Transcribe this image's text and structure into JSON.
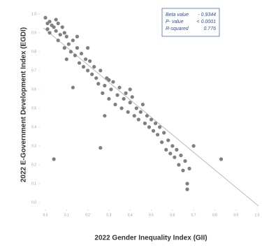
{
  "chart_data": {
    "type": "scatter",
    "x_label": "2022 Gender Inequality Index (GII)",
    "y_label": "2022 E-Government Development Index (EGDI)",
    "annotations": [
      [
        "Beta value",
        "- 0.9344"
      ],
      [
        "P- value",
        "< 0.0001"
      ],
      [
        "R-squared",
        "0.776"
      ]
    ],
    "color": "#7f7f7f",
    "xlim": [
      0,
      1
    ],
    "ylim": [
      0,
      1
    ],
    "xticks": [
      {
        "value": 0,
        "label": "0.0"
      },
      {
        "value": 0.1,
        "label": "0.1"
      },
      {
        "value": 0.2,
        "label": "0.2"
      },
      {
        "value": 0.3,
        "label": "0.3"
      },
      {
        "value": 0.4,
        "label": "0.4"
      },
      {
        "value": 0.5,
        "label": "0.5"
      },
      {
        "value": 0.6,
        "label": "0.6"
      },
      {
        "value": 0.7,
        "label": "0.7"
      },
      {
        "value": 0.8,
        "label": "0.8"
      },
      {
        "value": 0.9,
        "label": "0.9"
      },
      {
        "value": 1,
        "label": "1.0"
      }
    ],
    "yticks": [
      {
        "value": 0,
        "label": "0.0"
      },
      {
        "value": 0.1,
        "label": "0.1"
      },
      {
        "value": 0.2,
        "label": "0.2"
      },
      {
        "value": 0.3,
        "label": "0.3"
      },
      {
        "value": 0.4,
        "label": "0.4"
      },
      {
        "value": 0.5,
        "label": "0.5"
      },
      {
        "value": 0.6,
        "label": "0.6"
      },
      {
        "value": 0.7,
        "label": "0.7"
      },
      {
        "value": 0.8,
        "label": "0.8"
      },
      {
        "value": 0.9,
        "label": "0.9"
      },
      {
        "value": 1,
        "label": "1.0"
      }
    ],
    "x": [
      0.0,
      0.01,
      0.02,
      0.01,
      0.03,
      0.02,
      0.04,
      0.05,
      0.05,
      0.06,
      0.07,
      0.08,
      0.06,
      0.09,
      0.1,
      0.11,
      0.09,
      0.12,
      0.13,
      0.1,
      0.14,
      0.15,
      0.16,
      0.17,
      0.13,
      0.18,
      0.19,
      0.2,
      0.21,
      0.22,
      0.23,
      0.24,
      0.25,
      0.26,
      0.27,
      0.28,
      0.29,
      0.3,
      0.31,
      0.32,
      0.33,
      0.34,
      0.35,
      0.36,
      0.37,
      0.38,
      0.39,
      0.4,
      0.41,
      0.42,
      0.43,
      0.44,
      0.45,
      0.46,
      0.47,
      0.48,
      0.49,
      0.5,
      0.51,
      0.52,
      0.53,
      0.54,
      0.55,
      0.56,
      0.57,
      0.58,
      0.59,
      0.6,
      0.61,
      0.62,
      0.63,
      0.64,
      0.65,
      0.66,
      0.67,
      0.67,
      0.68,
      0.7,
      0.04,
      0.26,
      0.28,
      0.83,
      0.2,
      0.3,
      0.4,
      0.15
    ],
    "values": [
      0.98,
      0.95,
      0.96,
      0.92,
      0.94,
      0.9,
      0.93,
      0.97,
      0.91,
      0.95,
      0.89,
      0.93,
      0.86,
      0.9,
      0.88,
      0.84,
      0.82,
      0.8,
      0.86,
      0.76,
      0.78,
      0.82,
      0.74,
      0.79,
      0.61,
      0.72,
      0.76,
      0.7,
      0.75,
      0.68,
      0.72,
      0.66,
      0.63,
      0.7,
      0.58,
      0.62,
      0.66,
      0.55,
      0.6,
      0.64,
      0.52,
      0.57,
      0.61,
      0.5,
      0.55,
      0.58,
      0.48,
      0.53,
      0.56,
      0.46,
      0.5,
      0.44,
      0.48,
      0.52,
      0.42,
      0.46,
      0.4,
      0.44,
      0.38,
      0.42,
      0.36,
      0.4,
      0.32,
      0.37,
      0.28,
      0.33,
      0.26,
      0.3,
      0.24,
      0.28,
      0.2,
      0.25,
      0.17,
      0.22,
      0.1,
      0.07,
      0.18,
      0.3,
      0.23,
      0.29,
      0.46,
      0.23,
      0.82,
      0.65,
      0.6,
      0.88
    ]
  }
}
